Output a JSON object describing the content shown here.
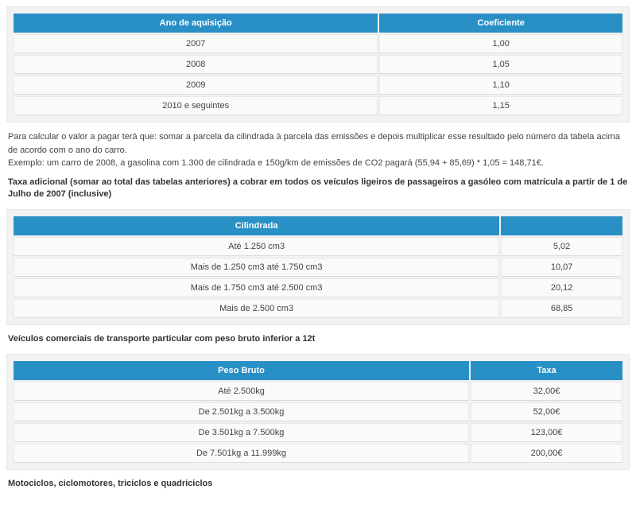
{
  "table1": {
    "header_bg": "#2990c6",
    "header_fg": "#ffffff",
    "row_bg": "#fafafa",
    "col_widths": [
      "60%",
      "40%"
    ],
    "columns": [
      "Ano de aquisição",
      "Coeficiente"
    ],
    "rows": [
      [
        "2007",
        "1,00"
      ],
      [
        "2008",
        "1,05"
      ],
      [
        "2009",
        "1,10"
      ],
      [
        "2010 e seguintes",
        "1,15"
      ]
    ]
  },
  "para1": "Para calcular o valor a pagar terá que: somar a parcela da cilindrada à parcela das emissões e depois multiplicar esse resultado pelo número da tabela acima de acordo com o ano do carro.",
  "para2": "Exemplo: um carro de 2008, a gasolina com 1.300 de cilindrada e 150g/km de emissões de CO2 pagará (55,94 + 85,69) * 1,05 = 148,71€.",
  "heading1": "Taxa adicional (somar ao total das tabelas anteriores) a cobrar em todos os veículos ligeiros de passageiros a gasóleo com matrícula a partir de 1 de Julho de 2007 (inclusive)",
  "table2": {
    "header_bg": "#2990c6",
    "header_fg": "#ffffff",
    "row_bg": "#fafafa",
    "col_widths": [
      "80%",
      "20%"
    ],
    "columns": [
      "Cilindrada",
      ""
    ],
    "rows": [
      [
        "Até 1.250 cm3",
        "5,02"
      ],
      [
        "Mais de 1.250 cm3 até 1.750 cm3",
        "10,07"
      ],
      [
        "Mais de 1.750 cm3 até 2.500 cm3",
        "20,12"
      ],
      [
        "Mais de 2.500 cm3",
        "68,85"
      ]
    ]
  },
  "heading2": "Veículos comerciais de transporte particular com peso bruto inferior a 12t",
  "table3": {
    "header_bg": "#2990c6",
    "header_fg": "#ffffff",
    "row_bg": "#fafafa",
    "col_widths": [
      "75%",
      "25%"
    ],
    "columns": [
      "Peso Bruto",
      "Taxa"
    ],
    "rows": [
      [
        "Até 2.500kg",
        "32,00€"
      ],
      [
        "De 2.501kg a 3.500kg",
        "52,00€"
      ],
      [
        "De 3.501kg a 7.500kg",
        "123,00€"
      ],
      [
        "De 7.501kg a 11.999kg",
        "200,00€"
      ]
    ]
  },
  "heading3": "Motociclos, ciclomotores, triciclos e quadriciclos"
}
